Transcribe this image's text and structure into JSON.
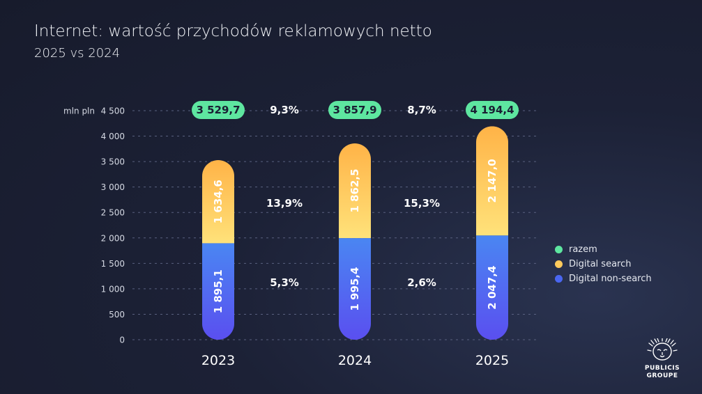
{
  "title": "Internet: wartość przychodów reklamowych netto",
  "subtitle": "2025 vs 2024",
  "colors": {
    "razem": "#5ee6a0",
    "search": "#ffca5c",
    "nonsearch": "#4a66f0",
    "grid": "#5a6180",
    "text": "#ffffff",
    "axis_text": "#d6dae4"
  },
  "chart_data": {
    "type": "bar",
    "stacked": true,
    "categories": [
      "2023",
      "2024",
      "2025"
    ],
    "series": [
      {
        "name": "Digital non-search",
        "values": [
          1895.1,
          1995.4,
          2047.4
        ],
        "labels": [
          "1 895,1",
          "1 995,4",
          "2 047,4"
        ]
      },
      {
        "name": "Digital search",
        "values": [
          1634.6,
          1862.5,
          2147.0
        ],
        "labels": [
          "1 634,6",
          "1 862,5",
          "2 147,0"
        ]
      }
    ],
    "totals": {
      "name": "razem",
      "values": [
        3529.7,
        3857.9,
        4194.4
      ],
      "labels": [
        "3 529,7",
        "3 857,9",
        "4 194,4"
      ]
    },
    "growth": {
      "razem": [
        "9,3%",
        "8,7%"
      ],
      "search": [
        "13,9%",
        "15,3%"
      ],
      "nonsearch": [
        "5,3%",
        "2,6%"
      ]
    },
    "ylabel": "mln pln",
    "ylim": [
      0,
      4500
    ],
    "yticks": [
      0,
      500,
      1000,
      1500,
      2000,
      2500,
      3000,
      3500,
      4000,
      4500
    ],
    "ytick_labels": [
      "0",
      "500",
      "1 000",
      "1 500",
      "2 000",
      "2 500",
      "3 000",
      "3 500",
      "4 000",
      "4 500"
    ],
    "grid": true,
    "legend": "right",
    "legend_entries": [
      "razem",
      "Digital search",
      "Digital non-search"
    ]
  },
  "logo": {
    "line1": "PUBLICIS",
    "line2": "GROUPE",
    "icon": "lion-head-icon"
  }
}
